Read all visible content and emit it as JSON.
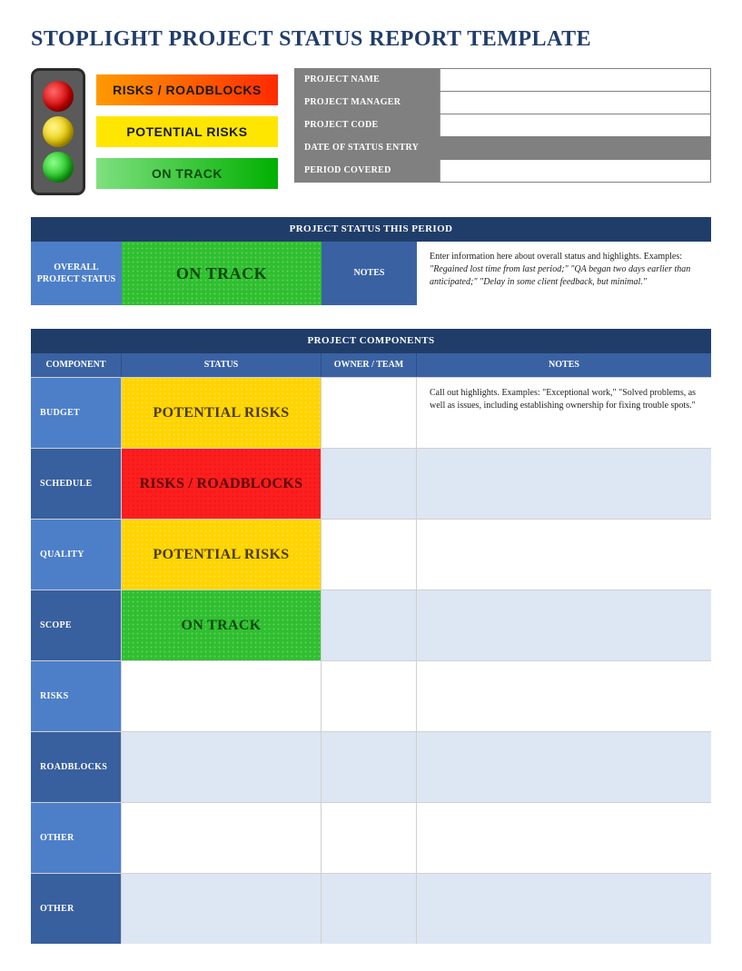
{
  "title": "STOPLIGHT PROJECT STATUS REPORT TEMPLATE",
  "colors": {
    "title": "#203d6a",
    "bar_bg": "#203d6a",
    "header_bg": "#3a62a3",
    "label_light": "#4d7fc9",
    "label_dark": "#385f9e",
    "meta_bg": "#808080",
    "tint_blue": "#dde6f3",
    "green": "#2fbf2f",
    "yellow": "#ffd400",
    "red": "#ff1e1e"
  },
  "legend": {
    "red": "RISKS / ROADBLOCKS",
    "yellow": "POTENTIAL RISKS",
    "green": "ON TRACK"
  },
  "meta": [
    {
      "label": "PROJECT NAME",
      "value": "",
      "full": false
    },
    {
      "label": "PROJECT MANAGER",
      "value": "",
      "full": false
    },
    {
      "label": "PROJECT CODE",
      "value": "",
      "full": false
    },
    {
      "label": "DATE OF STATUS ENTRY",
      "value": "",
      "full": true
    },
    {
      "label": "PERIOD COVERED",
      "value": "",
      "full": false
    }
  ],
  "status_period": {
    "bar": "PROJECT STATUS THIS PERIOD",
    "label": "OVERALL PROJECT STATUS",
    "status_text": "ON TRACK",
    "status_class": "st-green",
    "notes_label": "NOTES",
    "notes_intro": "Enter information here about overall status and highlights. Examples:",
    "notes_examples": "\"Regained lost time from last period;\" \"QA began two days earlier than anticipated;\" \"Delay in some client feedback, but minimal.\""
  },
  "components": {
    "bar": "PROJECT COMPONENTS",
    "headers": {
      "component": "COMPONENT",
      "status": "STATUS",
      "owner": "OWNER / TEAM",
      "notes": "NOTES"
    },
    "rows": [
      {
        "component": "BUDGET",
        "status_text": "POTENTIAL RISKS",
        "status_class": "st-yellow",
        "tint": "tint-white",
        "owner": "",
        "notes": "Call out highlights. Examples: \"Exceptional work,\" \"Solved problems, as well as issues, including establishing ownership for fixing trouble spots.\""
      },
      {
        "component": "SCHEDULE",
        "status_text": "RISKS / ROADBLOCKS",
        "status_class": "st-red",
        "tint": "tint-blue",
        "owner": "",
        "notes": ""
      },
      {
        "component": "QUALITY",
        "status_text": "POTENTIAL RISKS",
        "status_class": "st-yellow",
        "tint": "tint-white",
        "owner": "",
        "notes": ""
      },
      {
        "component": "SCOPE",
        "status_text": "ON TRACK",
        "status_class": "st-green",
        "tint": "tint-blue",
        "owner": "",
        "notes": ""
      },
      {
        "component": "RISKS",
        "status_text": "",
        "status_class": "",
        "tint": "tint-white",
        "owner": "",
        "notes": ""
      },
      {
        "component": "ROADBLOCKS",
        "status_text": "",
        "status_class": "",
        "tint": "tint-blue",
        "owner": "",
        "notes": ""
      },
      {
        "component": "OTHER",
        "status_text": "",
        "status_class": "",
        "tint": "tint-white",
        "owner": "",
        "notes": ""
      },
      {
        "component": "OTHER",
        "status_text": "",
        "status_class": "",
        "tint": "tint-blue",
        "owner": "",
        "notes": ""
      }
    ]
  }
}
